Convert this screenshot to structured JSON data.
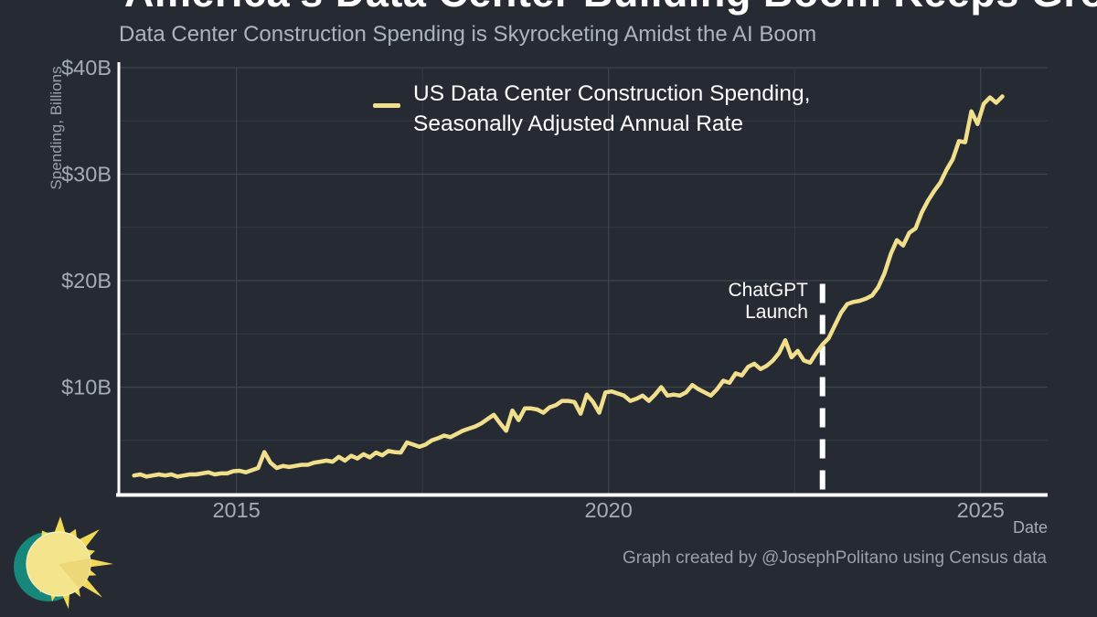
{
  "header": {
    "title": "America's Data Center Building Boom Keeps Growing",
    "subtitle": "Data Center Construction Spending is Skyrocketing Amidst the AI Boom"
  },
  "legend": {
    "line1": "US Data Center Construction Spending,",
    "line2": "Seasonally Adjusted Annual Rate"
  },
  "annotation": {
    "line1": "ChatGPT",
    "line2": "Launch"
  },
  "axes": {
    "ylabel": "Spending, Billions",
    "xlabel": "Date"
  },
  "footer": {
    "credit": "Graph created by @JosephPolitano using Census data"
  },
  "colors": {
    "background": "#252a33",
    "series_line": "#f2df8c",
    "grid_major": "#3f454f",
    "grid_minor": "#343a43",
    "spine": "#ffffff",
    "annotation_line": "#ffffff",
    "tick_text": "#a6acb4",
    "logo_teal": "#17867b",
    "logo_disc": "#f4e58c",
    "logo_wedge": "#ecd877",
    "logo_rays": "#f1d955"
  },
  "chart_data": {
    "type": "line",
    "title": "America's Data Center Building Boom Keeps Growing",
    "subtitle": "Data Center Construction Spending is Skyrocketing Amidst the AI Boom",
    "xlabel": "Date",
    "ylabel": "Spending, Billions",
    "xlim": [
      2013.42,
      2025.9
    ],
    "ylim": [
      0,
      40
    ],
    "grid": true,
    "legend_position": "top-center",
    "x_ticks": [
      {
        "value": 2015,
        "label": "2015"
      },
      {
        "value": 2020,
        "label": "2020"
      },
      {
        "value": 2025,
        "label": "2025"
      }
    ],
    "x_minor_ticks": [
      2017.5,
      2022.5
    ],
    "y_ticks": [
      {
        "value": 10,
        "label": "$10B"
      },
      {
        "value": 20,
        "label": "$20B"
      },
      {
        "value": 30,
        "label": "$30B"
      },
      {
        "value": 40,
        "label": "$40B"
      }
    ],
    "y_minor_ticks": [
      5,
      15,
      25,
      35
    ],
    "annotation": {
      "label": "ChatGPT Launch",
      "x": 2022.875,
      "line_style": "dashed-vertical",
      "line_top_value": 19.7
    },
    "series": [
      {
        "name": "US Data Center Construction Spending, Seasonally Adjusted Annual Rate",
        "color": "#f2df8c",
        "units": "USD billions, SAAR",
        "start": 2013.625,
        "interval_years": 0.083333,
        "values": [
          1.7,
          1.8,
          1.6,
          1.7,
          1.8,
          1.7,
          1.8,
          1.6,
          1.7,
          1.8,
          1.8,
          1.9,
          2.0,
          1.8,
          1.9,
          1.9,
          2.1,
          2.15,
          2.0,
          2.2,
          2.4,
          3.9,
          2.9,
          2.4,
          2.6,
          2.5,
          2.6,
          2.7,
          2.7,
          2.9,
          3.0,
          3.1,
          3.0,
          3.45,
          3.1,
          3.55,
          3.3,
          3.7,
          3.4,
          3.85,
          3.6,
          4.0,
          3.9,
          3.85,
          4.8,
          4.6,
          4.4,
          4.6,
          5.0,
          5.2,
          5.45,
          5.3,
          5.6,
          5.9,
          6.1,
          6.3,
          6.6,
          7.0,
          7.4,
          6.6,
          5.9,
          7.8,
          6.9,
          8.0,
          8.0,
          7.9,
          7.6,
          8.1,
          8.3,
          8.7,
          8.7,
          8.6,
          7.5,
          9.3,
          8.6,
          7.6,
          9.5,
          9.6,
          9.4,
          9.2,
          8.7,
          8.9,
          9.2,
          8.7,
          9.3,
          10.0,
          9.2,
          9.3,
          9.2,
          9.5,
          10.2,
          9.8,
          9.5,
          9.2,
          9.8,
          10.6,
          10.4,
          11.3,
          11.1,
          11.9,
          12.2,
          11.7,
          12.0,
          12.5,
          13.2,
          14.4,
          12.8,
          13.4,
          12.5,
          12.3,
          13.2,
          14.0,
          14.6,
          15.8,
          17.0,
          17.8,
          18.0,
          18.1,
          18.3,
          18.6,
          19.4,
          20.7,
          22.5,
          23.8,
          23.3,
          24.5,
          24.9,
          26.4,
          27.5,
          28.4,
          29.2,
          30.4,
          31.4,
          33.1,
          33.0,
          35.9,
          34.7,
          36.6,
          37.2,
          36.7,
          37.3
        ]
      }
    ]
  }
}
